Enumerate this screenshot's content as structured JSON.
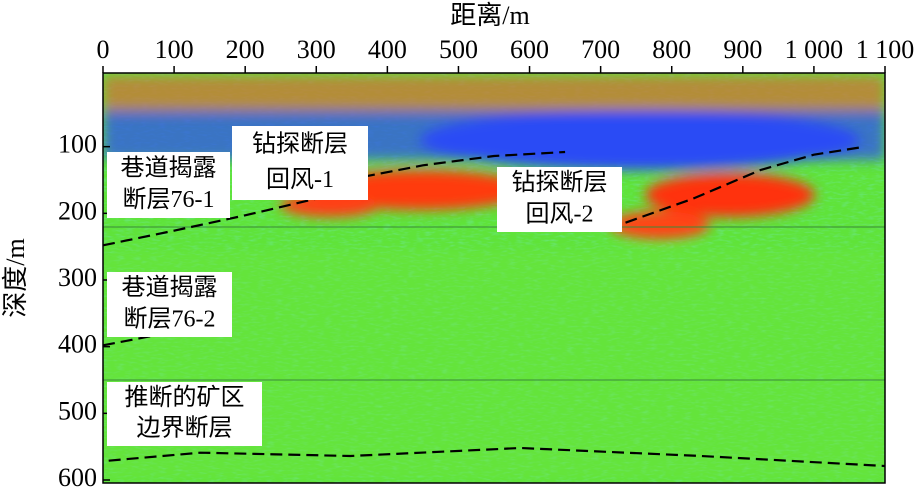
{
  "chart_data": {
    "type": "profile",
    "xlabel": "距离/m",
    "ylabel": "深度/m",
    "xlim": [
      0,
      1100
    ],
    "xticks": [
      0,
      100,
      200,
      300,
      400,
      500,
      600,
      700,
      800,
      900,
      {
        "value": 1000,
        "label": "1 000"
      },
      {
        "value": 1100,
        "label": "1 100"
      }
    ],
    "ylim": [
      0,
      600
    ],
    "yticks": [
      100,
      200,
      300,
      400,
      500,
      600
    ],
    "y_inverted": true,
    "line_color": "#000000",
    "series": [
      {
        "x": [
          0,
          100,
          200,
          300,
          362,
          450,
          550,
          650
        ],
        "values": [
          248,
          226,
          203,
          178,
          146,
          128,
          114,
          108
        ]
      },
      {
        "x": [
          735,
          830,
          925,
          1000,
          1066
        ],
        "values": [
          214,
          178,
          135,
          112,
          101
        ]
      },
      {
        "x": [
          0,
          108
        ],
        "values": [
          398,
          376
        ]
      },
      {
        "x": [
          8,
          137,
          348,
          587,
          841,
          1100
        ],
        "values": [
          571,
          559,
          564,
          552,
          564,
          579
        ]
      }
    ],
    "annotations": [
      [
        "巷道揭露",
        "断层76-1"
      ],
      [
        "钻探断层",
        "回风-1"
      ],
      [
        "钻探断层",
        "回风-2"
      ],
      [
        "巷道揭露",
        "断层76-2"
      ],
      [
        "推断的矿区",
        "边界断层"
      ]
    ]
  }
}
